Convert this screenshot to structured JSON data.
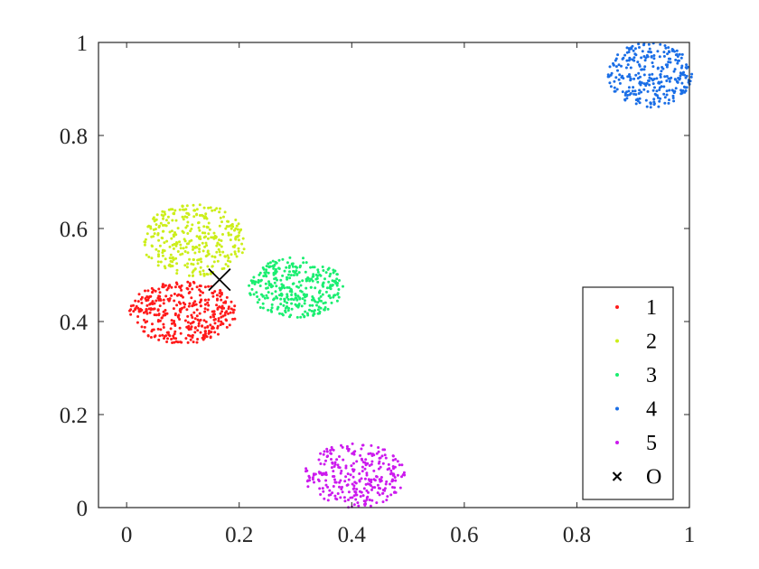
{
  "chart_data": {
    "type": "scatter",
    "title": "",
    "xlabel": "",
    "ylabel": "",
    "xlim": [
      -0.05,
      1.0
    ],
    "ylim": [
      0,
      1
    ],
    "x_ticks": [
      "0",
      "0.2",
      "0.4",
      "0.6",
      "0.8",
      "1"
    ],
    "y_ticks": [
      "0",
      "0.2",
      "0.4",
      "0.6",
      "0.8",
      "1"
    ],
    "grid": false,
    "legend_position": "bottom-right",
    "series": [
      {
        "name": "1",
        "color": "#ff1a1a",
        "center": [
          0.1,
          0.42
        ],
        "spread": [
          0.095,
          0.068
        ],
        "count": 380
      },
      {
        "name": "2",
        "color": "#ccee1a",
        "center": [
          0.12,
          0.575
        ],
        "spread": [
          0.093,
          0.078
        ],
        "count": 330
      },
      {
        "name": "3",
        "color": "#1aee70",
        "center": [
          0.3,
          0.473
        ],
        "spread": [
          0.085,
          0.065
        ],
        "count": 330
      },
      {
        "name": "4",
        "color": "#1a6ee6",
        "center": [
          0.93,
          0.93
        ],
        "spread": [
          0.075,
          0.07
        ],
        "count": 280
      },
      {
        "name": "5",
        "color": "#cc1aee",
        "center": [
          0.405,
          0.068
        ],
        "spread": [
          0.09,
          0.07
        ],
        "count": 280
      }
    ],
    "marker_point": {
      "name": "O",
      "x": 0.165,
      "y": 0.49,
      "color": "#000000",
      "marker": "x"
    }
  }
}
